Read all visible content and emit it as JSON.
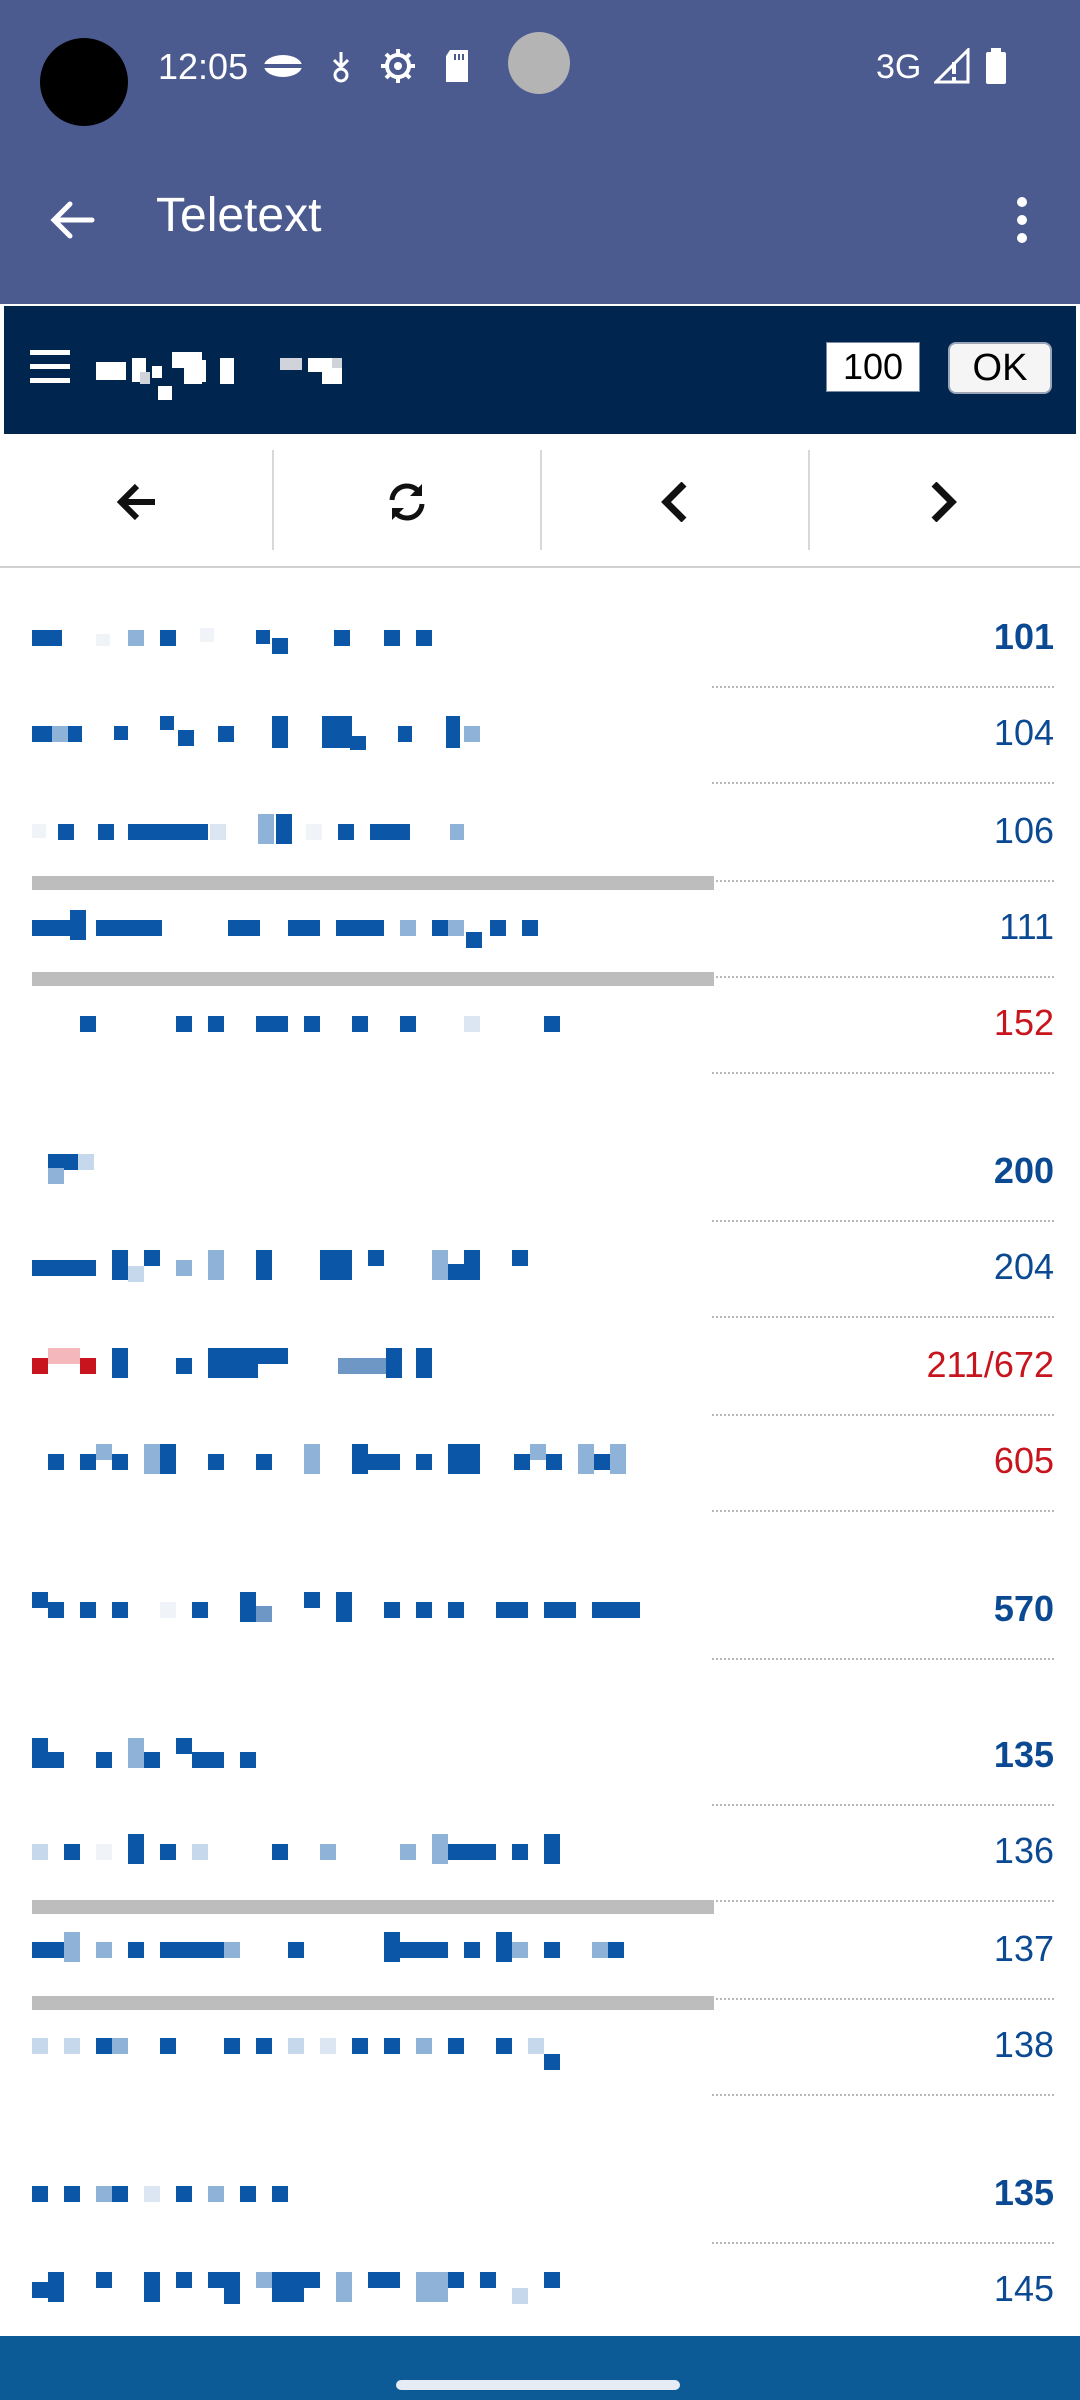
{
  "status_bar": {
    "time": "12:05",
    "network": "3G",
    "icons": [
      "camera-icon",
      "data-saver-icon",
      "download-icon",
      "settings-icon",
      "sd-card-icon",
      "signal-icon",
      "battery-icon"
    ]
  },
  "app_bar": {
    "title": "Teletext",
    "icons": [
      "back-arrow-icon",
      "more-vert-icon"
    ]
  },
  "teletext": {
    "page_input_value": "100",
    "ok_label": "OK",
    "icons": [
      "hamburger-menu-icon",
      "logo"
    ]
  },
  "nav": {
    "icons": [
      "back-icon",
      "refresh-icon",
      "previous-page-icon",
      "next-page-icon"
    ]
  },
  "index": {
    "rows": [
      {
        "page": "101",
        "style": "bold"
      },
      {
        "page": "104",
        "style": "normal"
      },
      {
        "page": "106",
        "style": "normal"
      },
      {
        "page": "111",
        "style": "normal"
      },
      {
        "page": "152",
        "style": "red"
      },
      {
        "page": "200",
        "style": "bold"
      },
      {
        "page": "204",
        "style": "normal"
      },
      {
        "page": "211/672",
        "style": "red"
      },
      {
        "page": "605",
        "style": "red"
      },
      {
        "page": "570",
        "style": "bold"
      },
      {
        "page": "135",
        "style": "bold"
      },
      {
        "page": "136",
        "style": "normal"
      },
      {
        "page": "137",
        "style": "normal"
      },
      {
        "page": "138",
        "style": "normal"
      },
      {
        "page": "135",
        "style": "bold"
      },
      {
        "page": "145",
        "style": "normal"
      }
    ]
  },
  "colors": {
    "status_bar_bg": "#4c5b8f",
    "teletext_header_bg": "#002650",
    "link_blue": "#0b4a92",
    "link_red": "#c8141c",
    "bottom_bar_bg": "#0c5a96"
  }
}
